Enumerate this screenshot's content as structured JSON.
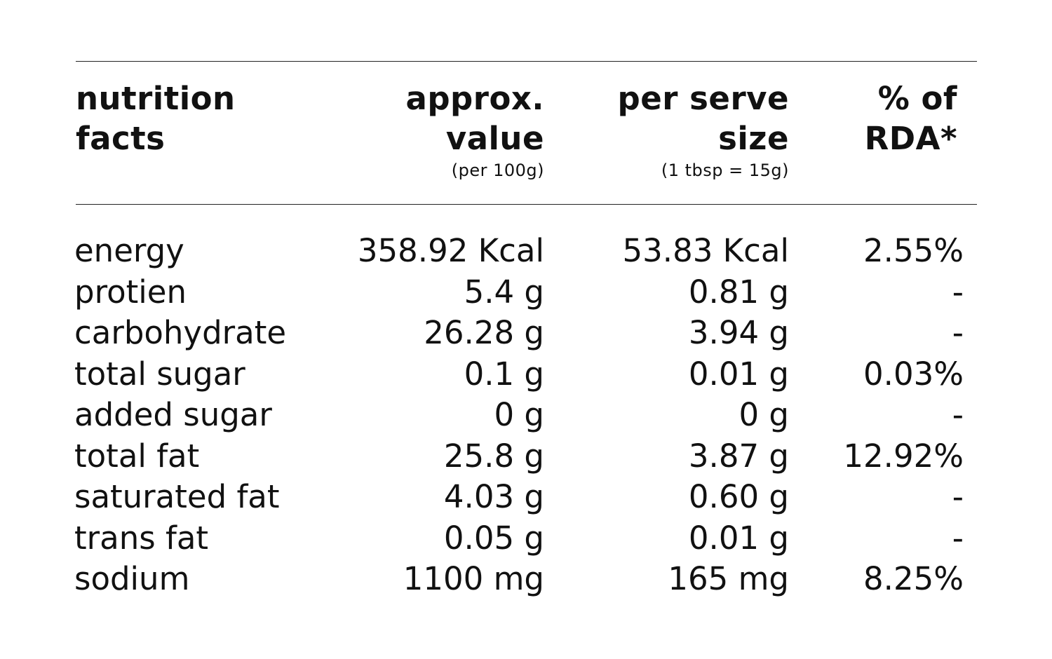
{
  "header": {
    "col1": {
      "line1": "nutrition",
      "line2": "facts"
    },
    "col2": {
      "line1": "approx.",
      "line2": "value",
      "sub": "(per 100g)"
    },
    "col3": {
      "line1": "per serve",
      "line2": "size",
      "sub": "(1 tbsp = 15g)"
    },
    "col4": {
      "line1": "% of",
      "line2": "RDA*"
    }
  },
  "rows": [
    {
      "name": "energy",
      "per100g": "358.92 Kcal",
      "perServe": "53.83 Kcal",
      "rda": "2.55%"
    },
    {
      "name": "protien",
      "per100g": "5.4 g",
      "perServe": "0.81 g",
      "rda": "-"
    },
    {
      "name": "carbohydrate",
      "per100g": "26.28 g",
      "perServe": "3.94 g",
      "rda": "-"
    },
    {
      "name": "total sugar",
      "per100g": "0.1 g",
      "perServe": "0.01 g",
      "rda": "0.03%"
    },
    {
      "name": "added sugar",
      "per100g": "0 g",
      "perServe": "0 g",
      "rda": "-"
    },
    {
      "name": "total fat",
      "per100g": "25.8 g",
      "perServe": "3.87 g",
      "rda": "12.92%"
    },
    {
      "name": "saturated fat",
      "per100g": "4.03 g",
      "perServe": "0.60 g",
      "rda": "-"
    },
    {
      "name": "trans fat",
      "per100g": "0.05 g",
      "perServe": "0.01 g",
      "rda": "-"
    },
    {
      "name": "sodium",
      "per100g": "1100 mg",
      "perServe": "165 mg",
      "rda": "8.25%"
    }
  ]
}
